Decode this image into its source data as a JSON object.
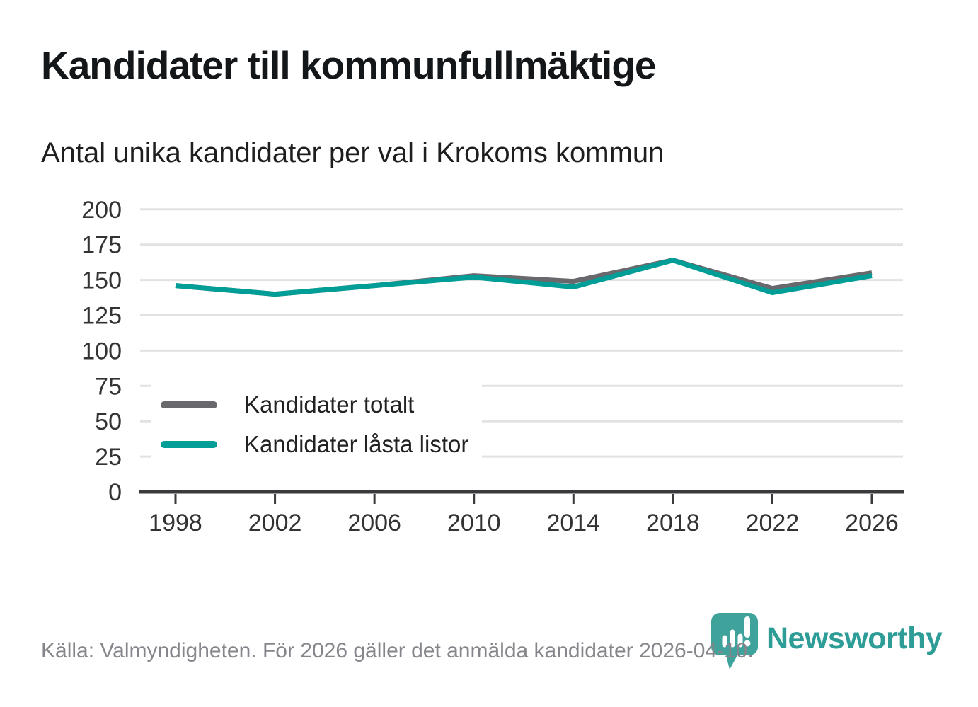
{
  "chart_data": {
    "type": "line",
    "title": "Kandidater till kommunfullmäktige",
    "subtitle": "Antal unika kandidater per val i Krokoms kommun",
    "x": [
      1998,
      2002,
      2006,
      2010,
      2014,
      2018,
      2022,
      2026
    ],
    "series": [
      {
        "name": "Kandidater totalt",
        "color": "#69696d",
        "values": [
          146,
          140,
          146,
          153,
          149,
          164,
          144,
          155
        ]
      },
      {
        "name": "Kandidater låsta listor",
        "color": "#009e96",
        "values": [
          146,
          140,
          146,
          152,
          145,
          164,
          141,
          153
        ]
      }
    ],
    "xlabel": "",
    "ylabel": "",
    "ylim": [
      0,
      200
    ],
    "yticks": [
      0,
      25,
      50,
      75,
      100,
      125,
      150,
      175,
      200
    ],
    "grid": "horizontal",
    "legend_position": "inside-left-middle"
  },
  "footer": {
    "source": "Källa: Valmyndigheten. För 2026 gäller det anmälda kandidater 2026-04-10."
  },
  "branding": {
    "wordmark": "Newsworthy",
    "logo_icon": "speech-bubble-bar-chart-exclamation",
    "wordmark_color": "#2f9d97",
    "icon_color": "#3fa39c"
  },
  "colors": {
    "grid": "#e2e2e2",
    "axis": "#3a3a3c",
    "tick_label": "#333333",
    "title": "#14171a",
    "footer_text": "#85858b"
  }
}
